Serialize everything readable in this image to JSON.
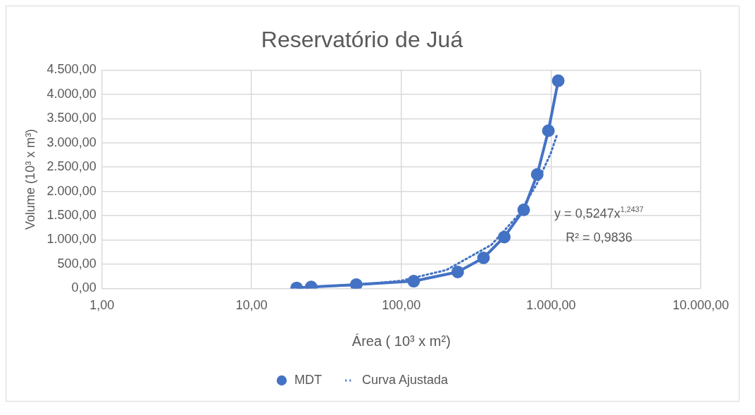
{
  "chart_data": {
    "type": "line",
    "title": "Reservatório de Juá",
    "xlabel": "Área ( 10³ x m²)",
    "ylabel": "Volume (10³ x m³)",
    "log": "x",
    "grid": true,
    "legend": "bottom",
    "xlim": [
      1,
      10000
    ],
    "xticks": [
      {
        "value": 1,
        "label": "1,00"
      },
      {
        "value": 10,
        "label": "10,00"
      },
      {
        "value": 100,
        "label": "100,00"
      },
      {
        "value": 1000,
        "label": "1.000,00"
      },
      {
        "value": 10000,
        "label": "10.000,00"
      }
    ],
    "ylim": [
      0,
      4500
    ],
    "yticks": [
      {
        "value": 0,
        "label": "0,00"
      },
      {
        "value": 500,
        "label": "500,00"
      },
      {
        "value": 1000,
        "label": "1.000,00"
      },
      {
        "value": 1500,
        "label": "1.500,00"
      },
      {
        "value": 2000,
        "label": "2.000,00"
      },
      {
        "value": 2500,
        "label": "2.500,00"
      },
      {
        "value": 3000,
        "label": "3.000,00"
      },
      {
        "value": 3500,
        "label": "3.500,00"
      },
      {
        "value": 4000,
        "label": "4.000,00"
      },
      {
        "value": 4500,
        "label": "4.500,00"
      }
    ],
    "series": [
      {
        "name": "MDT",
        "color": "#4472c4",
        "marker": "circle",
        "line_style": "solid",
        "x": [
          20,
          25,
          50,
          121,
          238,
          354,
          487,
          657,
          809,
          960,
          1117
        ],
        "values": [
          10,
          30,
          80,
          150,
          340,
          630,
          1060,
          1620,
          2350,
          3250,
          4280
        ]
      },
      {
        "name": "Curva Ajustada",
        "color": "#4472c4",
        "marker": "none",
        "line_style": "dotted",
        "x": [
          20,
          50,
          100,
          200,
          400,
          600,
          800,
          1000,
          1100
        ],
        "values": [
          20,
          70,
          160,
          380,
          900,
          1500,
          2140,
          2800,
          3180
        ]
      }
    ],
    "annotations": [
      "y = 0,5247x$^{1,2437}$",
      "R² = 0,9836"
    ]
  }
}
